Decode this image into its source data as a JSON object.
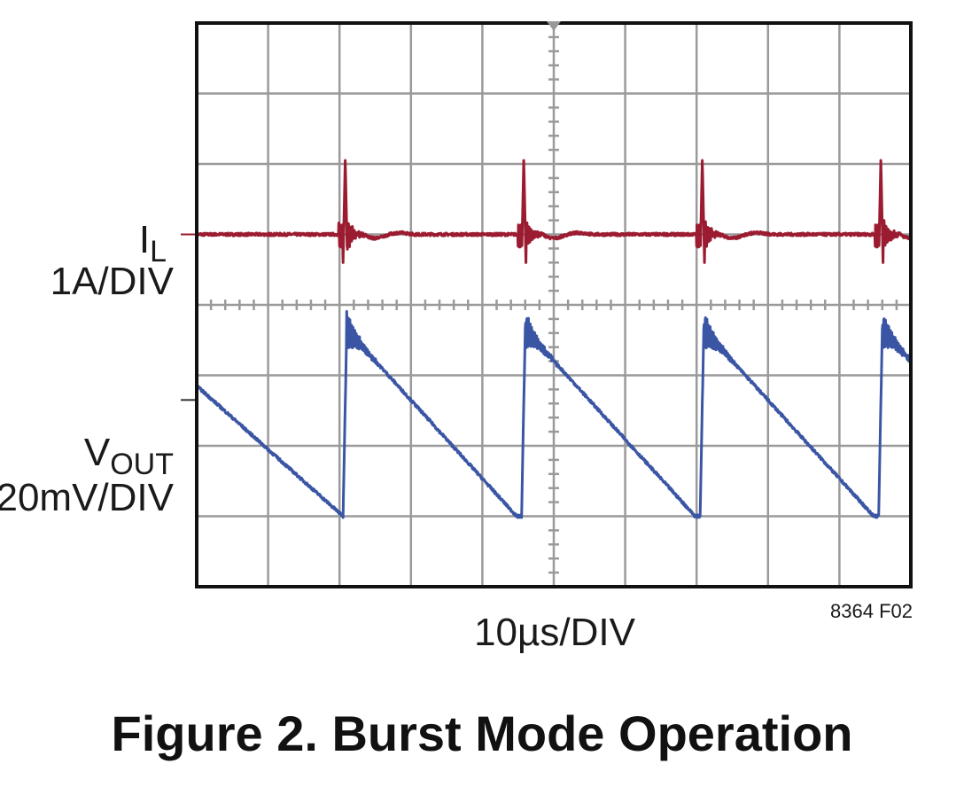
{
  "chart_data": {
    "type": "line",
    "title": "Figure 2. Burst Mode Operation",
    "xlabel": "10µs/DIV",
    "figure_code": "8364 F02",
    "x_divisions": 10,
    "y_divisions": 8,
    "xlim": [
      0,
      100
    ],
    "x_unit": "µs",
    "burst_times_us": [
      20.5,
      45.5,
      70.5,
      95.5
    ],
    "series": [
      {
        "name": "I_L",
        "label_main": "I",
        "label_sub": "L",
        "scale": "1A/DIV",
        "color": "#9b1b30",
        "baseline_div": 5,
        "spike_peak_div": 6.05,
        "spike_min_div": 4.6
      },
      {
        "name": "V_OUT",
        "label_main": "V",
        "label_sub": "OUT",
        "scale": "20mV/DIV",
        "color": "#3a55a4",
        "start_div": 2.85,
        "min_div": 1.0,
        "peak_div": 3.65
      }
    ]
  }
}
